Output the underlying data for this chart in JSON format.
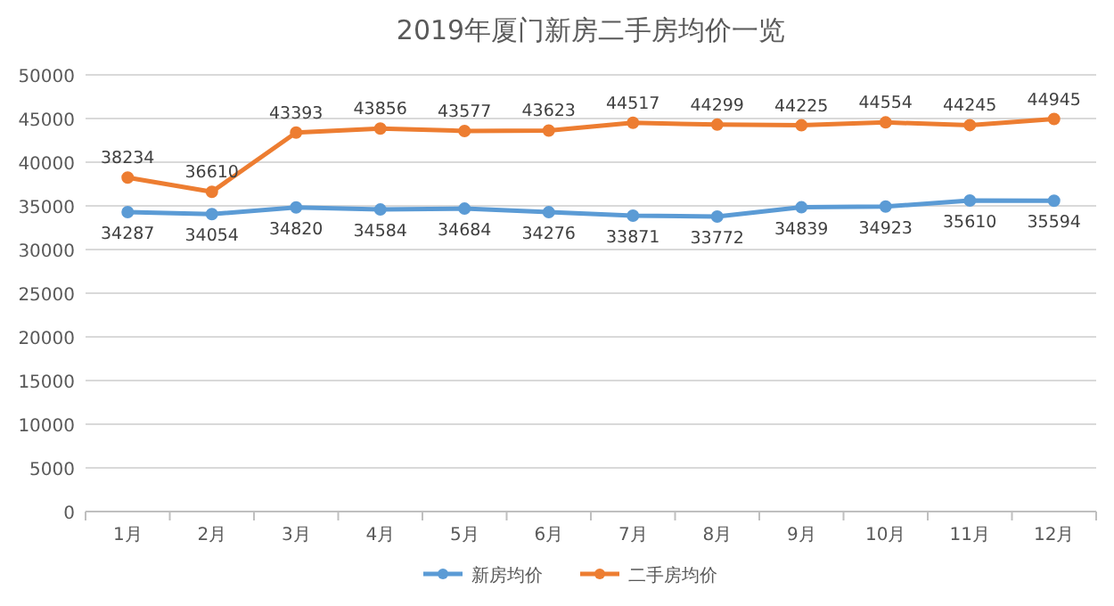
{
  "chart_data": {
    "type": "line",
    "title": "2019年厦门新房二手房均价一览",
    "categories": [
      "1月",
      "2月",
      "3月",
      "4月",
      "5月",
      "6月",
      "7月",
      "8月",
      "9月",
      "10月",
      "11月",
      "12月"
    ],
    "series": [
      {
        "name": "新房均价",
        "color": "#5b9bd5",
        "values": [
          34287,
          34054,
          34820,
          34584,
          34684,
          34276,
          33871,
          33772,
          34839,
          34923,
          35610,
          35594
        ]
      },
      {
        "name": "二手房均价",
        "color": "#ed7d31",
        "values": [
          38234,
          36610,
          43393,
          43856,
          43577,
          43623,
          44517,
          44299,
          44225,
          44554,
          44245,
          44945
        ]
      }
    ],
    "ylim": [
      0,
      50000
    ],
    "yticks": [
      0,
      5000,
      10000,
      15000,
      20000,
      25000,
      30000,
      35000,
      40000,
      45000,
      50000
    ],
    "grid": "y",
    "legend": "bottom",
    "marker": "circle",
    "line_style": "solid",
    "data_labels": true
  }
}
